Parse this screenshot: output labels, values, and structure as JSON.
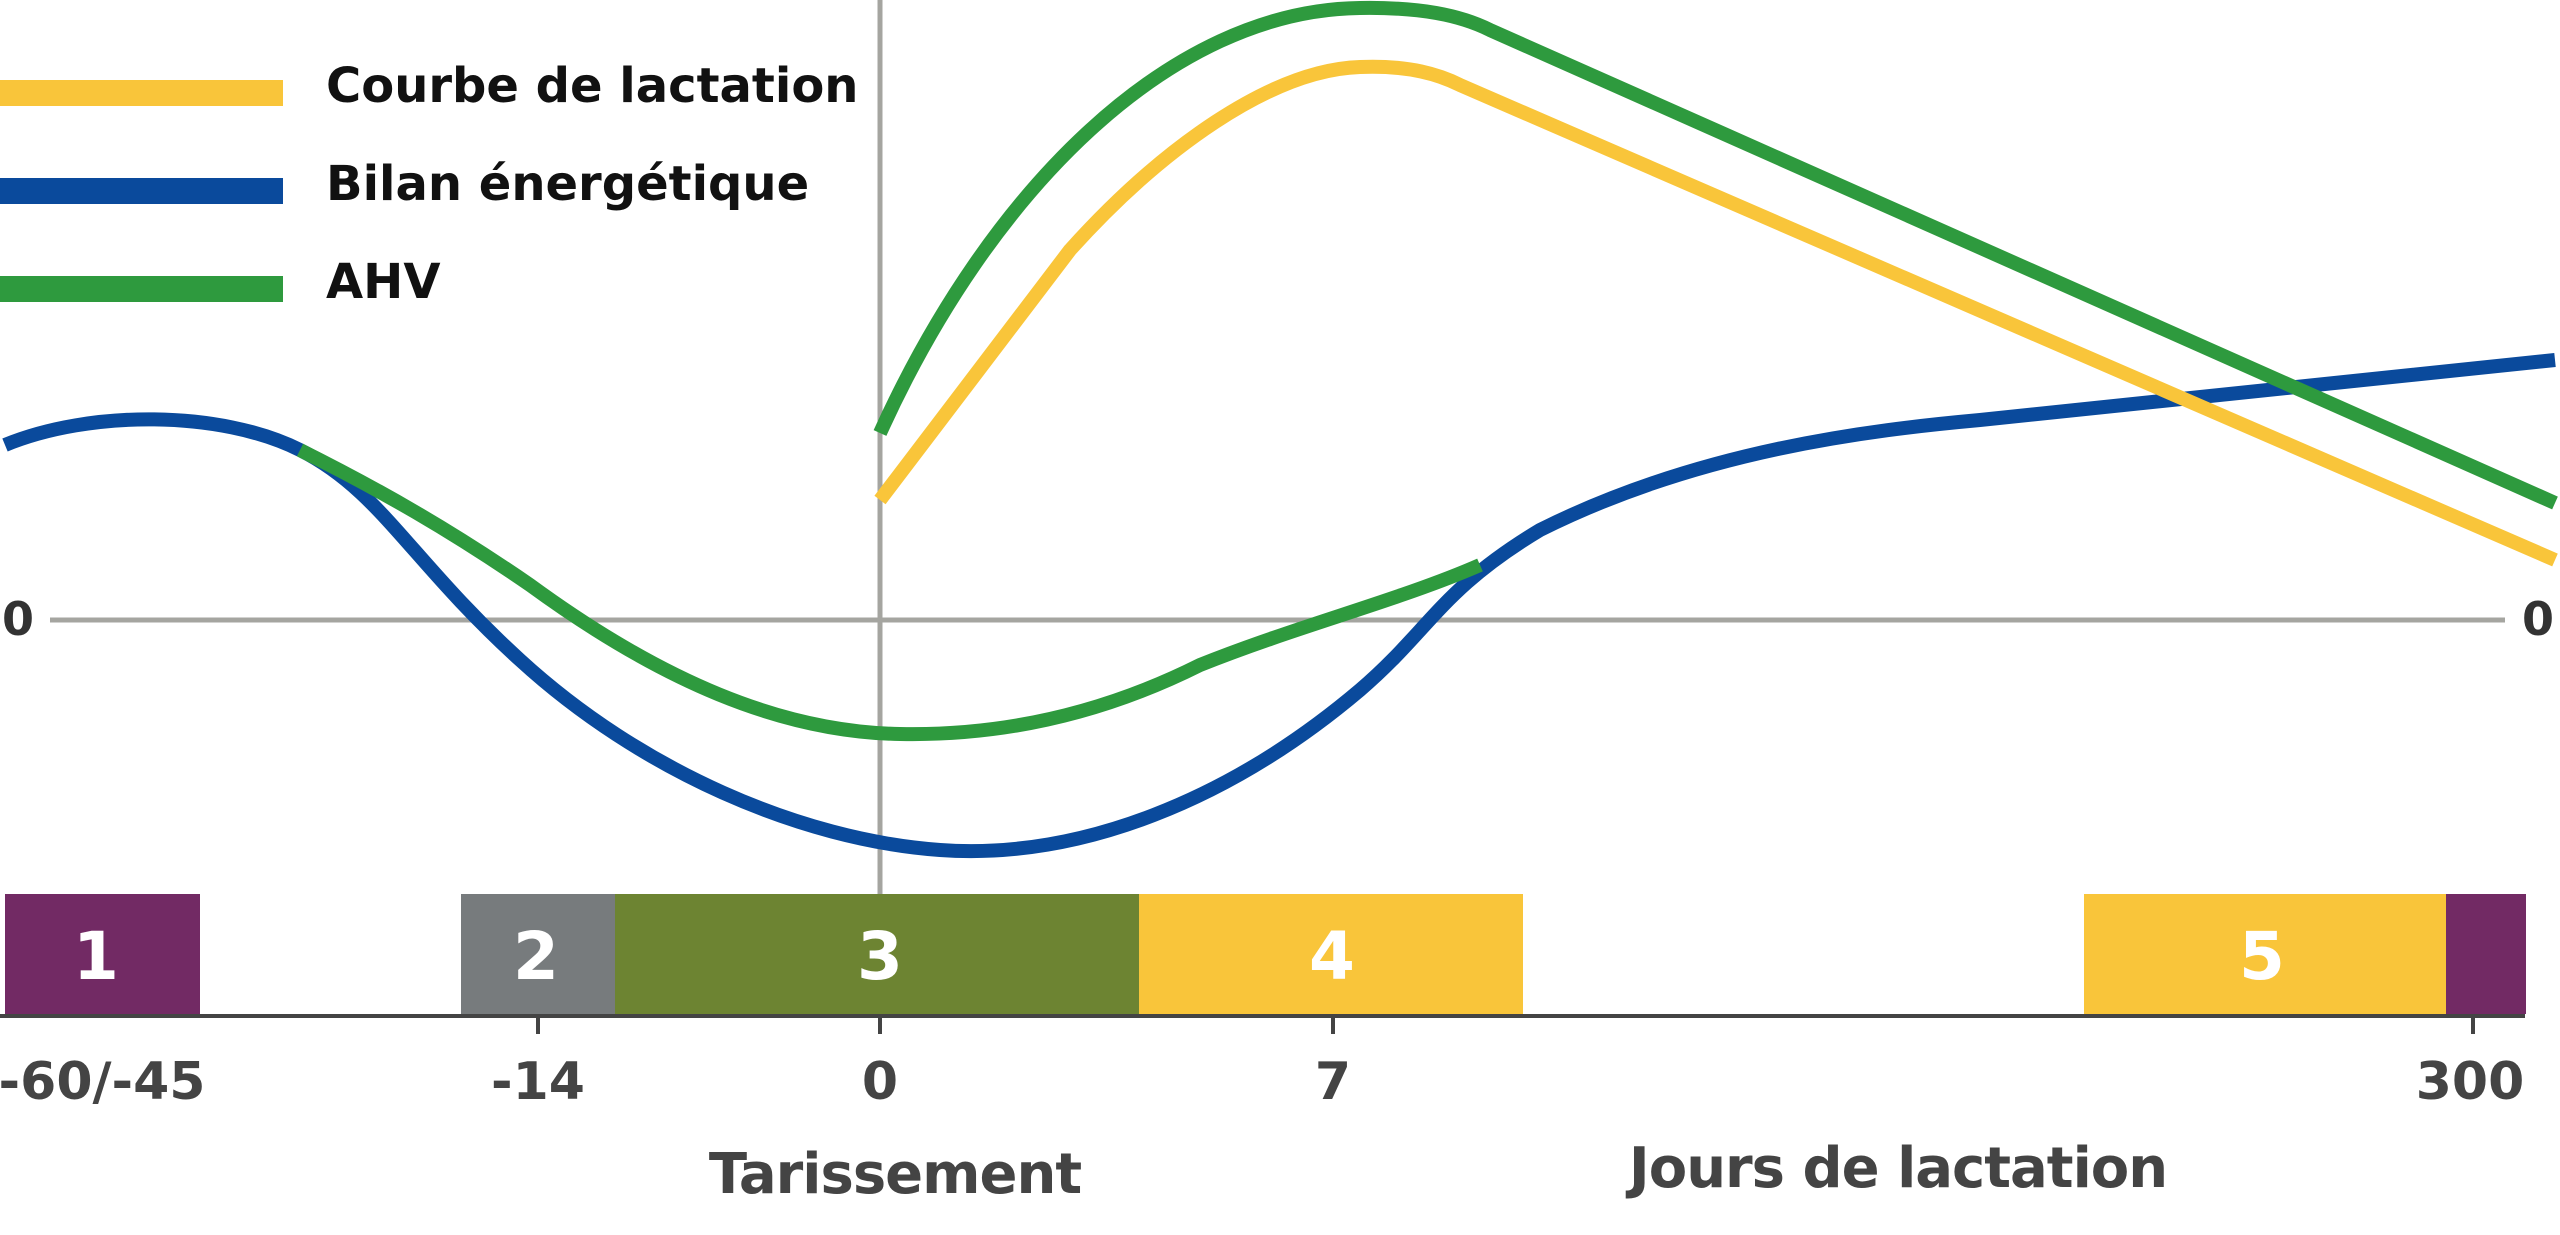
{
  "chart_data": {
    "type": "line",
    "legend": {
      "placement": "top-left",
      "items": [
        {
          "label": "Courbe de lactation",
          "color": "#f9c53a"
        },
        {
          "label": "Bilan énergétique",
          "color": "#0a4a9c"
        },
        {
          "label": "AHV",
          "color": "#2e9a3e"
        }
      ]
    },
    "y_tick_left": "0",
    "y_tick_right": "0",
    "x_ticks": [
      "-60/-45",
      "-14",
      "0",
      "7",
      "300"
    ],
    "x_titles": {
      "dry": "Tarissement",
      "lactation": "Jours de lactation"
    },
    "phases": [
      {
        "label": "1",
        "color": "#722a64"
      },
      {
        "label": "2",
        "color": "#777b7d"
      },
      {
        "label": "3",
        "color": "#6d8432"
      },
      {
        "label": "4",
        "color": "#f9c53a"
      },
      {
        "label": "5",
        "color": "#f9c53a"
      },
      {
        "label": "",
        "color": "#722a64"
      }
    ],
    "axis_color": "#a5a5a0",
    "grid": false
  }
}
